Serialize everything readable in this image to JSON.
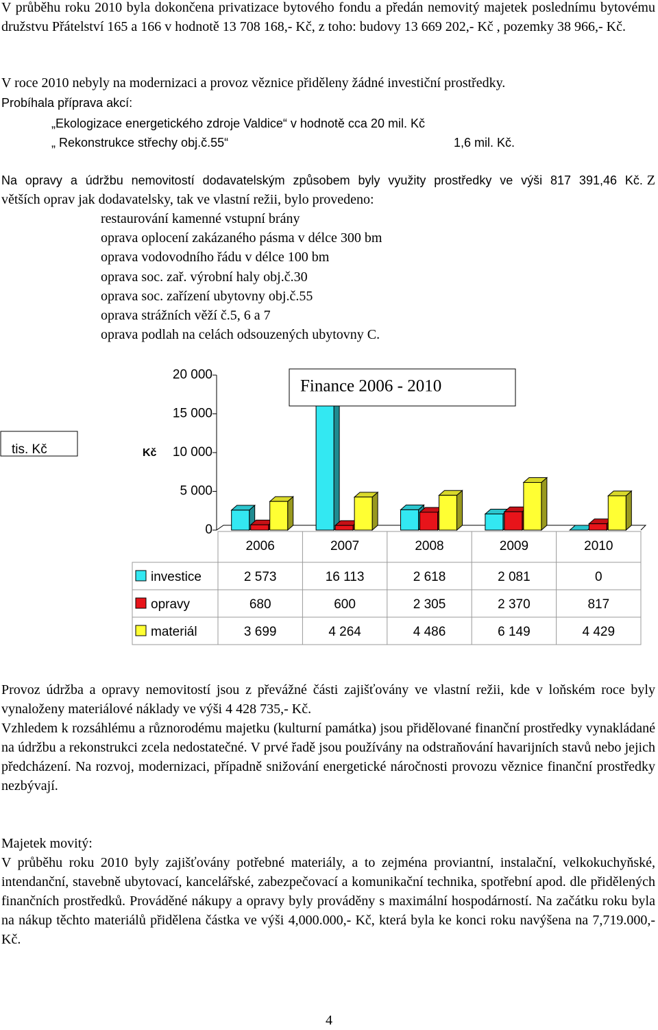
{
  "paragraphs": [
    "V průběhu roku 2010 byla dokončena privatizace bytového fondu a předán nemovitý majetek poslednímu bytovému družstvu Přátelství 165 a 166 v hodnotě 13 708 168,- Kč, z toho: budovy 13 669 202,- Kč , pozemky 38 966,- Kč.",
    "V roce 2010 nebyly na modernizaci a provoz věznice přiděleny žádné investiční prostředky."
  ],
  "preparation": {
    "heading": "Probíhala příprava akcí:",
    "items": [
      {
        "text": "„Ekologizace energetického zdroje Valdice“ v hodnotě cca 20 mil. Kč"
      },
      {
        "text": "„ Rekonstrukce střechy obj.č.55“",
        "amount": "1,6 mil. Kč."
      }
    ]
  },
  "repairs": {
    "intro": "Na opravy a údržbu nemovitostí dodavatelským způsobem byly využity prostředky ve výši 817 391,46 Kč.",
    "intro_cont": "Z větších oprav jak dodavatelsky, tak ve vlastní režii, bylo provedeno:",
    "list": [
      "restaurování kamenné vstupní brány",
      "oprava oplocení zakázaného pásma v délce 300 bm",
      "oprava vodovodního řádu v délce 100 bm",
      "oprava soc. zař. výrobní haly obj.č.30",
      "oprava soc. zařízení ubytovny obj.č.55",
      "oprava strážních věží č.5, 6 a 7",
      "oprava podlah na celách odsouzených ubytovny C."
    ]
  },
  "chart_data": {
    "type": "bar",
    "title": "Finance 2006 - 2010",
    "unit_box": "tis. Kč",
    "y_label": "Kč",
    "categories": [
      "2006",
      "2007",
      "2008",
      "2009",
      "2010"
    ],
    "series": [
      {
        "name": "investice",
        "color": "#33e8f2",
        "values": [
          2573,
          16113,
          2618,
          2081,
          0
        ],
        "value_labels": [
          "2 573",
          "16 113",
          "2 618",
          "2 081",
          "0"
        ]
      },
      {
        "name": "opravy",
        "color": "#e8141a",
        "values": [
          680,
          600,
          2305,
          2370,
          817
        ],
        "value_labels": [
          "680",
          "600",
          "2 305",
          "2 370",
          "817"
        ]
      },
      {
        "name": "materiál",
        "color": "#ffff33",
        "values": [
          3699,
          4264,
          4486,
          6149,
          4429
        ],
        "value_labels": [
          "3 699",
          "4 264",
          "4 486",
          "6 149",
          "4 429"
        ]
      }
    ],
    "ylim": [
      0,
      20000
    ],
    "yticks": [
      0,
      {
        "value": 5000,
        "label": "5 000"
      },
      {
        "value": 10000,
        "label": "10 000"
      },
      {
        "value": 15000,
        "label": "15 000"
      },
      {
        "value": 20000,
        "label": "20 000"
      }
    ]
  },
  "closing": [
    "Provoz údržba a opravy nemovitostí jsou z převážné části zajišťovány ve vlastní režii, kde v loňském roce byly vynaloženy materiálové náklady ve výši 4 428 735,- Kč.",
    "Vzhledem k rozsáhlému a různorodému majetku (kulturní památka) jsou přidělované finanční prostředky vynakládané na údržbu a rekonstrukci zcela nedostatečné. V prvé řadě jsou používány na odstraňování havarijních stavů nebo jejich předcházení. Na rozvoj, modernizaci, případně snižování energetické náročnosti provozu věznice finanční prostředky nezbývají."
  ],
  "movables": {
    "heading": "Majetek movitý:",
    "text": "V průběhu roku 2010 byly zajišťovány potřebné materiály, a to zejména proviantní, instalační, velkokuchyňské, intendanční, stavebně ubytovací, kancelářské, zabezpečovací a komunikační technika, spotřební apod. dle přidělených finančních prostředků. Prováděné nákupy a opravy byly prováděny s maximální hospodárností. Na začátku roku byla na nákup těchto materiálů přidělena částka ve výši 4,000.000,- Kč, která byla ke konci roku navýšena na 7,719.000,-Kč."
  },
  "page_number": "4"
}
